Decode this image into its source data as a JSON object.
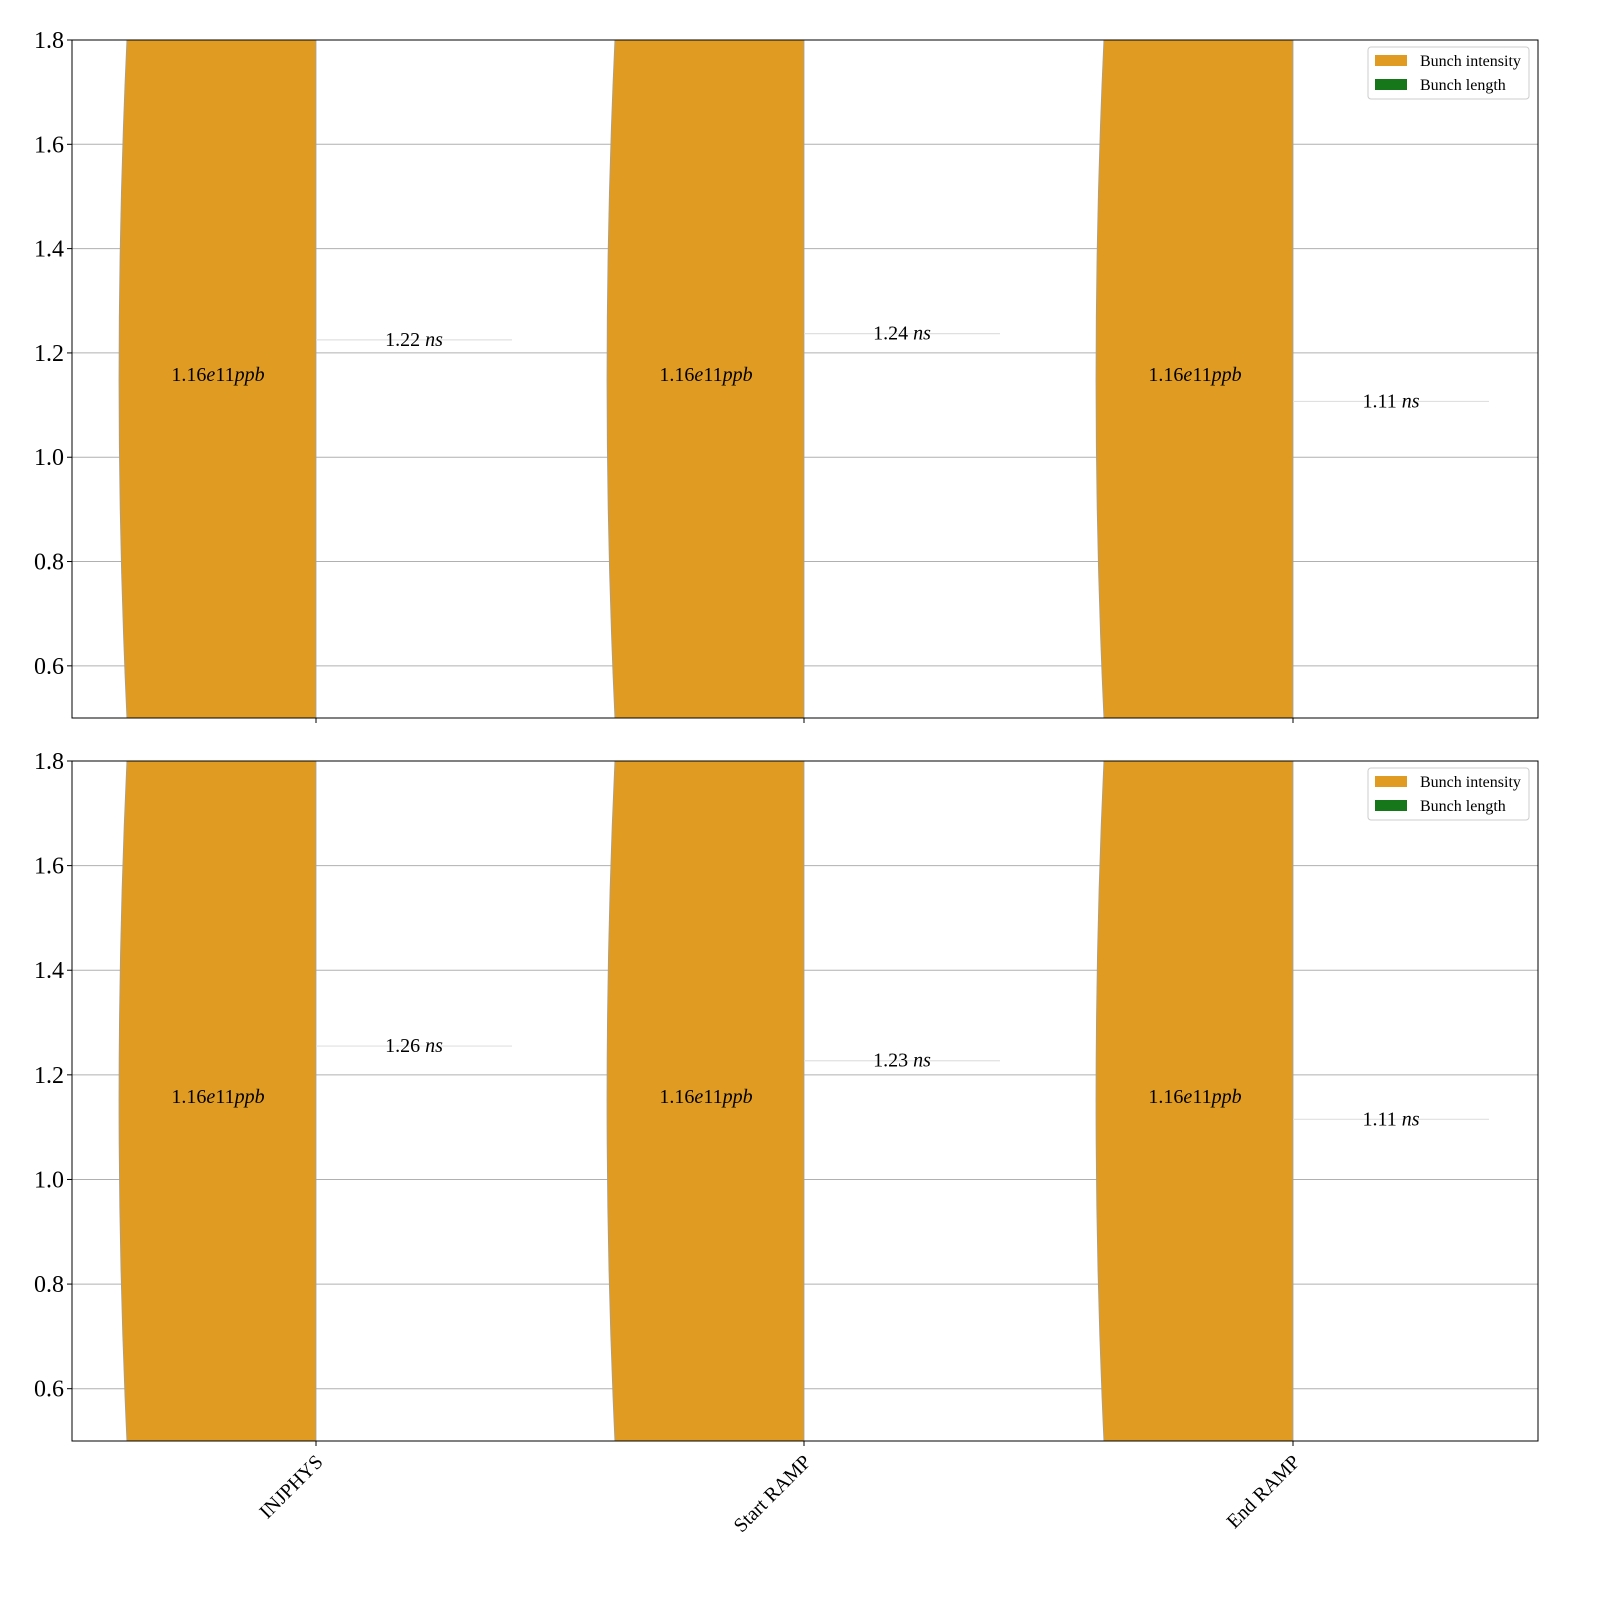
{
  "chart_data": [
    {
      "type": "violin",
      "categories": [
        "INJPHYS",
        "Start RAMP",
        "End RAMP"
      ],
      "ylim": [
        0.5,
        1.8
      ],
      "yticks": [
        "0.6",
        "0.8",
        "1.0",
        "1.2",
        "1.4",
        "1.6",
        "1.8"
      ],
      "grid": true,
      "show_xtick_labels": false,
      "legend": {
        "position": "top-right",
        "entries": [
          {
            "label": "Bunch intensity",
            "color": "#e09c22"
          },
          {
            "label": "Bunch length",
            "color": "#15761a"
          }
        ]
      },
      "series": [
        {
          "name": "Bunch intensity",
          "color": "#e09c22",
          "labels": [
            "1.16e11",
            "1.16e11",
            "1.16e11"
          ],
          "label_unit": "ppb",
          "label_y": [
            1.16,
            1.16,
            1.16
          ]
        },
        {
          "name": "Bunch length",
          "color": "#15761a",
          "values": [
            1.225,
            1.237,
            1.107
          ],
          "labels": [
            "1.22",
            "1.24",
            "1.11"
          ],
          "label_unit": "ns"
        }
      ]
    },
    {
      "type": "violin",
      "categories": [
        "INJPHYS",
        "Start RAMP",
        "End RAMP"
      ],
      "ylim": [
        0.5,
        1.8
      ],
      "yticks": [
        "0.6",
        "0.8",
        "1.0",
        "1.2",
        "1.4",
        "1.6",
        "1.8"
      ],
      "grid": true,
      "show_xtick_labels": true,
      "legend": {
        "position": "top-right",
        "entries": [
          {
            "label": "Bunch intensity",
            "color": "#e09c22"
          },
          {
            "label": "Bunch length",
            "color": "#15761a"
          }
        ]
      },
      "series": [
        {
          "name": "Bunch intensity",
          "color": "#e09c22",
          "labels": [
            "1.16e11",
            "1.16e11",
            "1.16e11"
          ],
          "label_unit": "ppb",
          "label_y": [
            1.16,
            1.16,
            1.16
          ]
        },
        {
          "name": "Bunch length",
          "color": "#15761a",
          "values": [
            1.255,
            1.227,
            1.115
          ],
          "labels": [
            "1.26",
            "1.23",
            "1.11"
          ],
          "label_unit": "ns"
        }
      ]
    }
  ]
}
